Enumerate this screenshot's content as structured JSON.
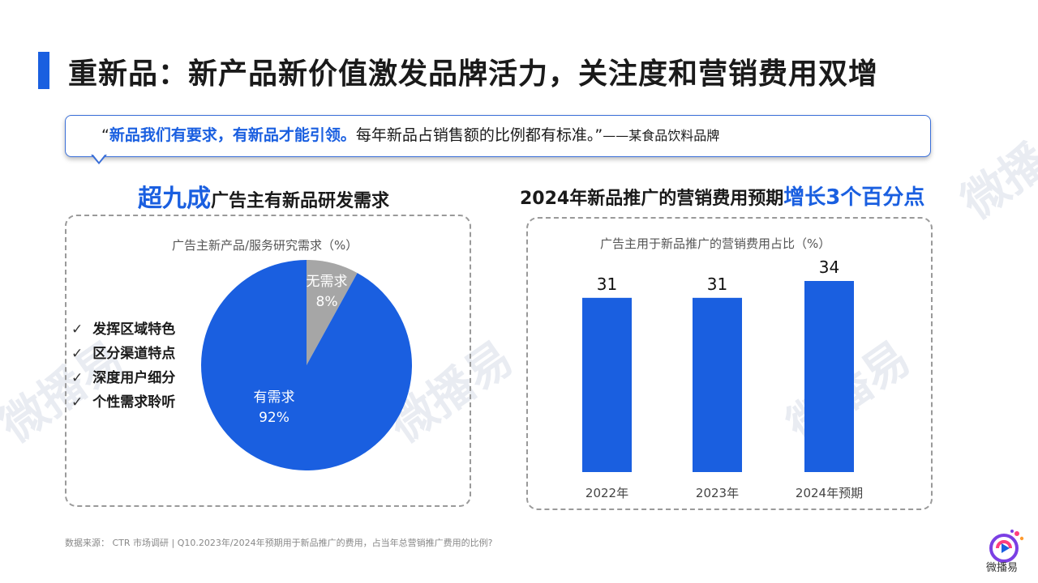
{
  "header": {
    "title": "重新品：新产品新价值激发品牌活力，关注度和营销费用双增"
  },
  "quote": {
    "open": "“",
    "highlight": "新品我们有要求，有新品才能引领。",
    "text": "每年新品占销售额的比例都有标准。”",
    "source": "——某食品饮料品牌"
  },
  "left_section": {
    "heading_big": "超九成",
    "heading_rest": "广告主有新品研发需求",
    "checklist": [
      "发挥区域特色",
      "区分渠道特点",
      "深度用户细分",
      "个性需求聆听"
    ]
  },
  "right_section": {
    "heading_rest": "2024年新品推广的营销费用预期",
    "heading_big": "增长3个百分点"
  },
  "chart_data": [
    {
      "type": "pie",
      "title": "广告主新产品/服务研究需求（%）",
      "slices": [
        {
          "label": "有需求",
          "value": 92,
          "value_label": "92%",
          "color": "#1a5fe0"
        },
        {
          "label": "无需求",
          "value": 8,
          "value_label": "8%",
          "color": "#a6a6a6"
        }
      ]
    },
    {
      "type": "bar",
      "title": "广告主用于新品推广的营销费用占比（%）",
      "categories": [
        "2022年",
        "2023年",
        "2024年预期"
      ],
      "values": [
        31,
        31,
        34
      ],
      "color": "#1a5fe0",
      "grid": false
    }
  ],
  "footer": {
    "source": "数据来源： CTR 市场调研 | Q10.2023年/2024年预期用于新品推广的费用，占当年总营销推广费用的比例?"
  },
  "logo": {
    "text": "微播易",
    "icon": "play-icon"
  },
  "colors": {
    "accent": "#1a5fe0",
    "grey_slice": "#a6a6a6"
  }
}
